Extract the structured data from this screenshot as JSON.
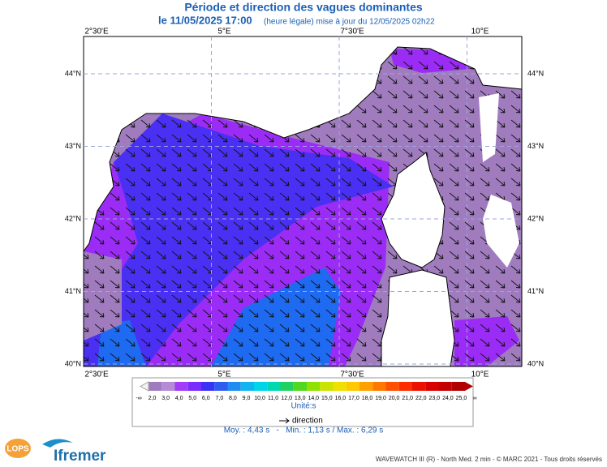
{
  "header": {
    "title": "Période et direction des vagues dominantes",
    "date": "le 11/05/2025 17:00",
    "note": "(heure légale) mise à jour du 12/05/2025 02h22"
  },
  "map": {
    "lon_labels": [
      "2°30'E",
      "5°E",
      "7°30'E",
      "10°E"
    ],
    "lat_labels": [
      "44°N",
      "43°N",
      "42°N",
      "41°N",
      "40°N"
    ]
  },
  "colorbar": {
    "labels": [
      "-∞",
      "2,0",
      "3,0",
      "4,0",
      "5,0",
      "6,0",
      "7,0",
      "8,0",
      "9,0",
      "10,0",
      "11,0",
      "12,0",
      "13,0",
      "14,0",
      "15,0",
      "16,0",
      "17,0",
      "18,0",
      "19,0",
      "20,0",
      "21,0",
      "22,0",
      "23,0",
      "24,0",
      "25,0",
      "∞"
    ],
    "colors": [
      "#a07cbf",
      "#b58ad6",
      "#a23cf7",
      "#7a2cff",
      "#3a32f5",
      "#2f5cf0",
      "#1e8cf0",
      "#10b4f0",
      "#00d4e8",
      "#00d8b0",
      "#20d060",
      "#50d820",
      "#90e000",
      "#c8e400",
      "#f0e000",
      "#ffc800",
      "#ffa000",
      "#ff7800",
      "#ff5000",
      "#ff2c00",
      "#ec1000",
      "#d80000",
      "#c40000",
      "#b00000"
    ],
    "unit": "Unité:s"
  },
  "legend": {
    "direction": "direction"
  },
  "stats": "Moy. : 4,43 s   -   Min. : 1,13 s / Max. : 6,29 s",
  "footer": {
    "logo1": "LOPS",
    "logo2": "Ifremer",
    "credit": "WAVEWATCH III (R) - North Med. 2 min - © MARC 2021 - Tous droits réservés"
  }
}
